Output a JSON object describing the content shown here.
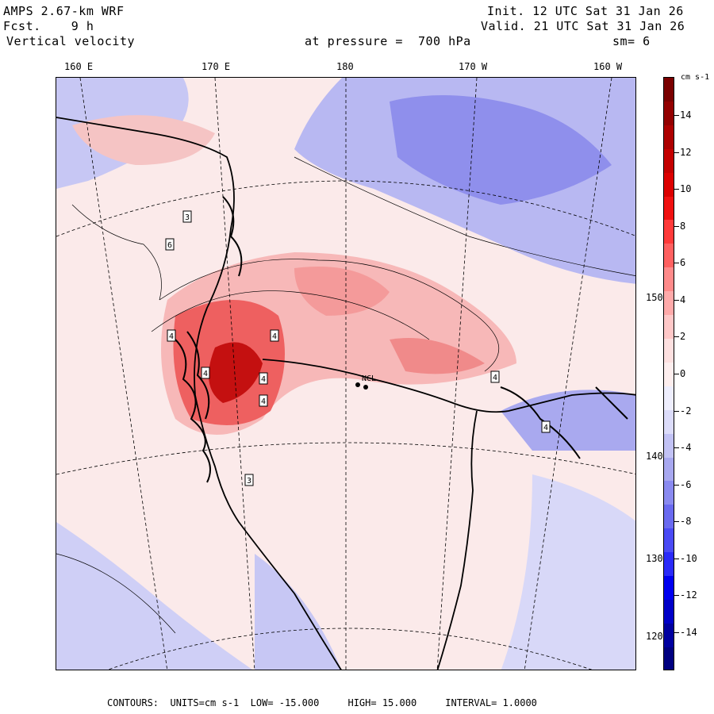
{
  "header": {
    "model": "AMPS 2.67-km WRF",
    "forecast_label": "Fcst.",
    "forecast_hours": "9 h",
    "field": "Vertical velocity",
    "init": "Init. 12 UTC Sat 31 Jan 26",
    "valid": "Valid. 21 UTC Sat 31 Jan 26",
    "level_label": "at pressure =",
    "level": "700 hPa",
    "smoothing": "sm= 6"
  },
  "lon_labels": [
    "160 E",
    "170 E",
    "180",
    "170 W",
    "160 W"
  ],
  "lat_labels": [
    "150 W",
    "140 W",
    "130 W",
    "120 W"
  ],
  "colorbar": {
    "units": "cm s-1",
    "labels": [
      "14",
      "12",
      "10",
      "8",
      "6",
      "4",
      "2",
      "0",
      "-2",
      "-4",
      "-6",
      "-8",
      "-10",
      "-12",
      "-14"
    ],
    "colors": [
      "#7a0000",
      "#930000",
      "#ad0000",
      "#c40000",
      "#dc0000",
      "#f01010",
      "#ff3a3a",
      "#ff6060",
      "#ff8a8a",
      "#ffaaaa",
      "#ffc8c8",
      "#fde0e0",
      "#fdeeee",
      "#eeeefd",
      "#dcdcfa",
      "#c2c2f5",
      "#a8a8f0",
      "#8a8af0",
      "#6a6af0",
      "#4a4af5",
      "#2a2af8",
      "#0000f0",
      "#0000c8",
      "#0000a0",
      "#000080"
    ]
  },
  "stations": [
    "NCL",
    "4",
    "4",
    "4",
    "4",
    "4",
    "4",
    "3",
    "6",
    "4",
    "3"
  ],
  "footer": {
    "contours_label": "CONTOURS:",
    "units_label": "UNITS=cm s-1",
    "low": "LOW= -15.000",
    "high": "HIGH= 15.000",
    "interval": "INTERVAL= 1.0000"
  }
}
